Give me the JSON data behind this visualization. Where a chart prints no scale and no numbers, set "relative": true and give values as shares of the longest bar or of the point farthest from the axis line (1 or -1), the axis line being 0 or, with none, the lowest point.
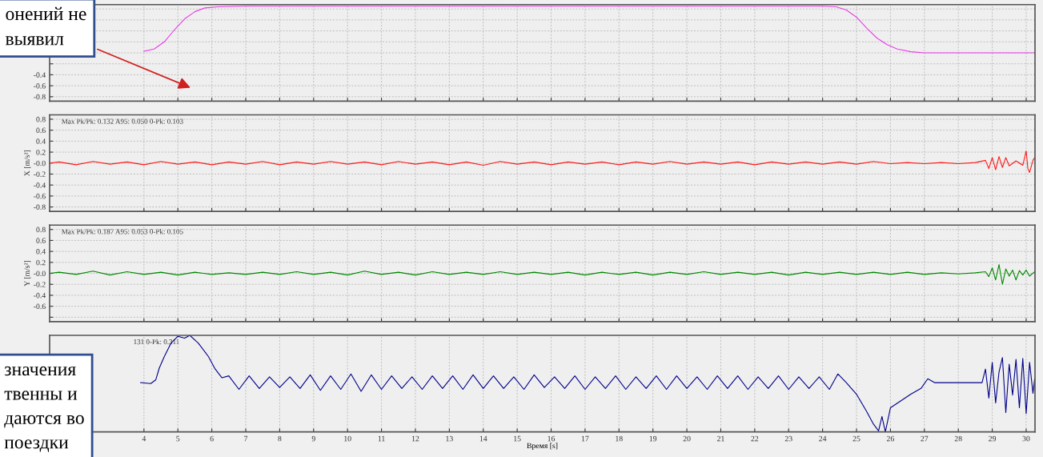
{
  "chart_data": [
    {
      "type": "line",
      "xlim": [
        1.22,
        30.26
      ],
      "ylim": [
        -0.88,
        0.88
      ],
      "xticks": [
        4,
        5,
        6,
        7,
        8,
        9,
        10,
        11,
        12,
        13,
        14,
        15,
        16,
        17,
        18,
        19,
        20,
        21,
        22,
        23,
        24,
        25,
        26,
        27,
        28,
        29,
        30
      ],
      "yticks": [
        {
          "value": 0.8,
          "label": null
        },
        {
          "value": 0.6,
          "label": null
        },
        {
          "value": 0.4,
          "label": null
        },
        {
          "value": 0.2,
          "label": null
        },
        {
          "value": 0,
          "label": null
        },
        {
          "value": -0.2,
          "label": null
        },
        -0.4,
        -0.6,
        -0.8
      ],
      "grid": true,
      "tick_labels": "y",
      "annotations": [
        "онений не\nвыявил"
      ],
      "series": [
        {
          "color": "#e83de8",
          "x": [
            4.0,
            4.3,
            4.6,
            4.9,
            5.2,
            5.5,
            5.8,
            6.2,
            7.0,
            24.0,
            24.4,
            24.7,
            25.0,
            25.3,
            25.6,
            25.9,
            26.2,
            26.6,
            27.0,
            30.25
          ],
          "values": [
            0.03,
            0.07,
            0.2,
            0.42,
            0.62,
            0.75,
            0.82,
            0.84,
            0.85,
            0.85,
            0.84,
            0.78,
            0.65,
            0.45,
            0.27,
            0.15,
            0.07,
            0.02,
            0.0,
            0.0
          ]
        }
      ]
    },
    {
      "type": "line",
      "xlim": [
        1.22,
        30.26
      ],
      "ylim": [
        -0.88,
        0.88
      ],
      "xticks": [
        4,
        5,
        6,
        7,
        8,
        9,
        10,
        11,
        12,
        13,
        14,
        15,
        16,
        17,
        18,
        19,
        20,
        21,
        22,
        23,
        24,
        25,
        26,
        27,
        28,
        29,
        30
      ],
      "yticks": [
        0.8,
        0.6,
        0.4,
        0.2,
        {
          "value": 0,
          "label": "-0.0"
        },
        -0.2,
        -0.4,
        -0.6,
        -0.8
      ],
      "grid": true,
      "tick_labels": "y",
      "ylabel": "X [m/s²]",
      "annotations": [
        "Max Pk/Pk: 0.132 A95: 0.050 0-Pk: 0.103"
      ],
      "series": [
        {
          "color": "#ff1a1a",
          "x": [
            1.22,
            1.5,
            2,
            2.5,
            3,
            3.5,
            4,
            4.5,
            5,
            5.5,
            6,
            6.5,
            7,
            7.5,
            8,
            8.5,
            9,
            9.5,
            10,
            10.5,
            11,
            11.5,
            12,
            12.5,
            13,
            13.5,
            14,
            14.5,
            15,
            15.5,
            16,
            16.5,
            17,
            17.5,
            18,
            18.5,
            19,
            19.5,
            20,
            20.5,
            21,
            21.5,
            22,
            22.5,
            23,
            23.5,
            24,
            24.5,
            25,
            25.5,
            26,
            26.5,
            27,
            27.5,
            28,
            28.5,
            28.8,
            28.9,
            29.0,
            29.1,
            29.2,
            29.3,
            29.4,
            29.5,
            29.7,
            29.9,
            30.0,
            30.05,
            30.1,
            30.2,
            30.25
          ],
          "values": [
            0.0,
            0.02,
            -0.03,
            0.03,
            -0.02,
            0.02,
            -0.03,
            0.03,
            -0.02,
            0.02,
            -0.03,
            0.02,
            -0.02,
            0.03,
            -0.03,
            0.02,
            -0.02,
            0.03,
            -0.02,
            0.02,
            -0.03,
            0.03,
            -0.02,
            0.02,
            -0.03,
            0.02,
            -0.04,
            0.03,
            -0.02,
            0.02,
            -0.03,
            0.02,
            -0.02,
            0.02,
            -0.03,
            0.02,
            -0.02,
            0.03,
            -0.02,
            0.02,
            -0.02,
            0.02,
            -0.03,
            0.02,
            -0.02,
            0.02,
            -0.02,
            0.02,
            -0.02,
            0.03,
            -0.01,
            0.01,
            -0.01,
            0.01,
            -0.01,
            0.01,
            0.05,
            -0.1,
            0.1,
            -0.12,
            0.12,
            -0.08,
            0.1,
            -0.05,
            0.04,
            -0.04,
            0.22,
            -0.1,
            -0.17,
            0.05,
            0.1
          ]
        }
      ]
    },
    {
      "type": "line",
      "xlim": [
        1.22,
        30.26
      ],
      "ylim": [
        -0.88,
        0.88
      ],
      "xticks": [
        4,
        5,
        6,
        7,
        8,
        9,
        10,
        11,
        12,
        13,
        14,
        15,
        16,
        17,
        18,
        19,
        20,
        21,
        22,
        23,
        24,
        25,
        26,
        27,
        28,
        29,
        30
      ],
      "yticks": [
        0.8,
        0.6,
        0.4,
        0.2,
        {
          "value": 0,
          "label": "-0.0"
        },
        -0.2,
        -0.4,
        -0.6,
        {
          "value": -0.8,
          "label": null
        }
      ],
      "grid": true,
      "tick_labels": "y",
      "ylabel": "Y [m/s²]",
      "annotations": [
        "Max Pk/Pk: 0.187 A95: 0.053 0-Pk: 0.105"
      ],
      "series": [
        {
          "color": "#008a00",
          "x": [
            1.22,
            1.5,
            2,
            2.5,
            3,
            3.5,
            4,
            4.5,
            5,
            5.5,
            6,
            6.5,
            7,
            7.5,
            8,
            8.5,
            9,
            9.5,
            10,
            10.5,
            11,
            11.5,
            12,
            12.5,
            13,
            13.5,
            14,
            14.5,
            15,
            15.5,
            16,
            16.5,
            17,
            17.5,
            18,
            18.5,
            19,
            19.5,
            20,
            20.5,
            21,
            21.5,
            22,
            22.5,
            23,
            23.5,
            24,
            24.5,
            25,
            25.5,
            26,
            26.5,
            27,
            27.5,
            28,
            28.5,
            28.8,
            28.9,
            29.0,
            29.1,
            29.2,
            29.3,
            29.4,
            29.5,
            29.6,
            29.7,
            29.8,
            29.9,
            30.0,
            30.1,
            30.25
          ],
          "values": [
            0.0,
            0.02,
            -0.02,
            0.04,
            -0.03,
            0.03,
            -0.02,
            0.02,
            -0.03,
            0.02,
            -0.02,
            0.01,
            -0.02,
            0.02,
            -0.02,
            0.03,
            -0.02,
            0.02,
            -0.03,
            0.04,
            -0.02,
            0.02,
            -0.03,
            0.03,
            -0.02,
            0.02,
            -0.02,
            0.03,
            -0.02,
            0.02,
            -0.02,
            0.02,
            -0.03,
            0.02,
            -0.02,
            0.02,
            -0.03,
            0.02,
            -0.02,
            0.03,
            -0.02,
            0.02,
            -0.02,
            0.02,
            -0.03,
            0.02,
            -0.02,
            0.02,
            -0.02,
            0.02,
            -0.02,
            0.02,
            -0.02,
            0.01,
            -0.01,
            0.01,
            0.03,
            -0.06,
            0.1,
            -0.12,
            0.16,
            -0.2,
            0.08,
            -0.05,
            0.06,
            -0.12,
            0.05,
            -0.03,
            0.06,
            -0.05,
            0.03
          ]
        }
      ]
    },
    {
      "type": "line",
      "relative": true,
      "xlim": [
        1.22,
        30.26
      ],
      "xticks": [
        4,
        5,
        6,
        7,
        8,
        9,
        10,
        11,
        12,
        13,
        14,
        15,
        16,
        17,
        18,
        19,
        20,
        21,
        22,
        23,
        24,
        25,
        26,
        27,
        28,
        29,
        30
      ],
      "grid": "x",
      "tick_labels": "x",
      "xlabel": "Время [s]",
      "annotations": [
        "131 0-Pk: 0.311",
        "значения\nтвенны и\nдаются во\nпоездки"
      ],
      "series": [
        {
          "color": "#00008b",
          "x": [
            3.9,
            4.2,
            4.35,
            4.45,
            4.6,
            4.8,
            5.0,
            5.2,
            5.35,
            5.6,
            5.9,
            6.1,
            6.3,
            6.5,
            6.8,
            7.1,
            7.4,
            7.7,
            8.0,
            8.3,
            8.6,
            8.9,
            9.2,
            9.5,
            9.8,
            10.1,
            10.4,
            10.7,
            11.0,
            11.3,
            11.6,
            11.9,
            12.2,
            12.5,
            12.8,
            13.1,
            13.4,
            13.7,
            14.0,
            14.3,
            14.6,
            14.9,
            15.2,
            15.5,
            15.8,
            16.1,
            16.4,
            16.7,
            17.0,
            17.3,
            17.6,
            17.9,
            18.2,
            18.5,
            18.8,
            19.1,
            19.4,
            19.7,
            20.0,
            20.3,
            20.6,
            20.9,
            21.2,
            21.5,
            21.8,
            22.1,
            22.4,
            22.7,
            23.0,
            23.3,
            23.6,
            23.9,
            24.2,
            24.45,
            24.7,
            25.0,
            25.3,
            25.5,
            25.65,
            25.75,
            25.85,
            26.0,
            26.3,
            26.6,
            26.9,
            27.1,
            27.3,
            28.0,
            28.7,
            28.8,
            28.9,
            29.0,
            29.1,
            29.2,
            29.3,
            29.4,
            29.5,
            29.6,
            29.7,
            29.8,
            29.9,
            30.0,
            30.1,
            30.2,
            30.25
          ],
          "values": [
            0.51,
            0.5,
            0.54,
            0.66,
            0.78,
            0.92,
            0.99,
            0.97,
            1.0,
            0.92,
            0.78,
            0.65,
            0.56,
            0.58,
            0.44,
            0.58,
            0.45,
            0.57,
            0.46,
            0.57,
            0.45,
            0.59,
            0.43,
            0.58,
            0.44,
            0.6,
            0.42,
            0.59,
            0.44,
            0.58,
            0.45,
            0.57,
            0.44,
            0.58,
            0.45,
            0.58,
            0.44,
            0.59,
            0.45,
            0.58,
            0.45,
            0.57,
            0.44,
            0.59,
            0.46,
            0.57,
            0.45,
            0.58,
            0.44,
            0.57,
            0.45,
            0.58,
            0.44,
            0.57,
            0.45,
            0.58,
            0.44,
            0.58,
            0.45,
            0.57,
            0.44,
            0.58,
            0.45,
            0.58,
            0.44,
            0.57,
            0.45,
            0.58,
            0.44,
            0.57,
            0.45,
            0.57,
            0.44,
            0.6,
            0.51,
            0.39,
            0.21,
            0.08,
            0.01,
            0.16,
            0.0,
            0.25,
            0.32,
            0.39,
            0.45,
            0.55,
            0.51,
            0.51,
            0.51,
            0.65,
            0.35,
            0.72,
            0.3,
            0.62,
            0.77,
            0.2,
            0.7,
            0.38,
            0.75,
            0.25,
            0.76,
            0.19,
            0.72,
            0.4,
            0.55
          ]
        }
      ]
    }
  ]
}
